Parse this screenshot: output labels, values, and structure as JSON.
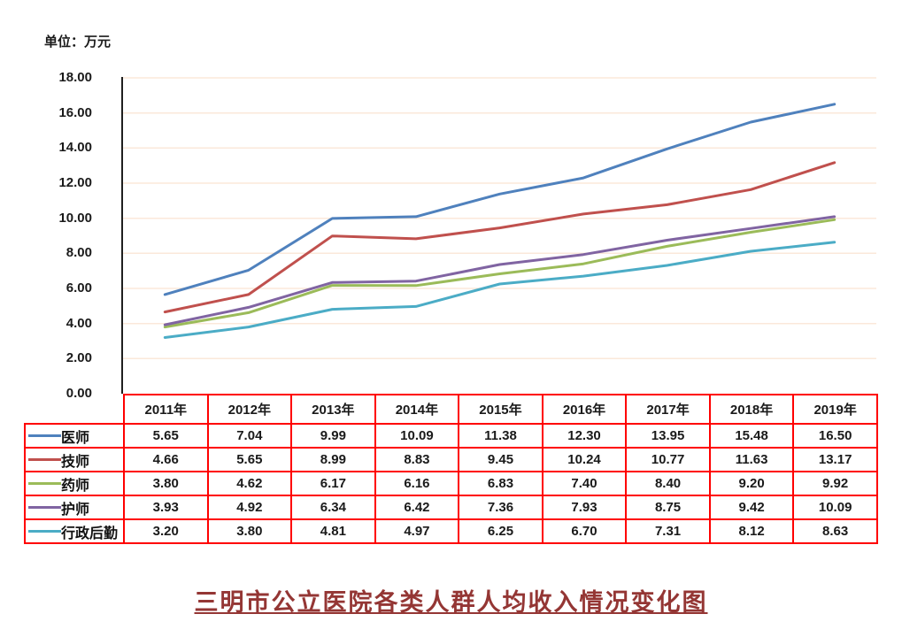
{
  "unit_label": "单位：万元",
  "title": "三明市公立医院各类人群人均收入情况变化图",
  "colors": {
    "gridline": "#FBE8DA",
    "axis": "#1f1f1f",
    "table_border": "#FF0000",
    "title_color": "#943634"
  },
  "chart_data": {
    "type": "line",
    "categories": [
      "2011年",
      "2012年",
      "2013年",
      "2014年",
      "2015年",
      "2016年",
      "2017年",
      "2018年",
      "2019年"
    ],
    "series": [
      {
        "key": "physician",
        "name": "医师",
        "color": "#4F81BD",
        "values": [
          5.65,
          7.04,
          9.99,
          10.09,
          11.38,
          12.3,
          13.95,
          15.48,
          16.5
        ]
      },
      {
        "key": "technician",
        "name": "技师",
        "color": "#C0504D",
        "values": [
          4.66,
          5.65,
          8.99,
          8.83,
          9.45,
          10.24,
          10.77,
          11.63,
          13.17
        ]
      },
      {
        "key": "pharmacist",
        "name": "药师",
        "color": "#9BBB59",
        "values": [
          3.8,
          4.62,
          6.17,
          6.16,
          6.83,
          7.4,
          8.4,
          9.2,
          9.92
        ]
      },
      {
        "key": "nurse",
        "name": "护师",
        "color": "#8064A2",
        "values": [
          3.93,
          4.92,
          6.34,
          6.42,
          7.36,
          7.93,
          8.75,
          9.42,
          10.09
        ]
      },
      {
        "key": "admin-logistics",
        "name": "行政后勤",
        "color": "#4BACC6",
        "values": [
          3.2,
          3.8,
          4.81,
          4.97,
          6.25,
          6.7,
          7.31,
          8.12,
          8.63
        ]
      }
    ],
    "title": "三明市公立医院各类人群人均收入情况变化图",
    "xlabel": "",
    "ylabel": "单位：万元",
    "ylim": [
      0,
      18
    ],
    "ytick_step": 2,
    "ytick_labels": [
      "0.00",
      "2.00",
      "4.00",
      "6.00",
      "8.00",
      "10.00",
      "12.00",
      "14.00",
      "16.00",
      "18.00"
    ],
    "grid": true,
    "legend_position": "table-left-column",
    "value_decimals": 2
  }
}
